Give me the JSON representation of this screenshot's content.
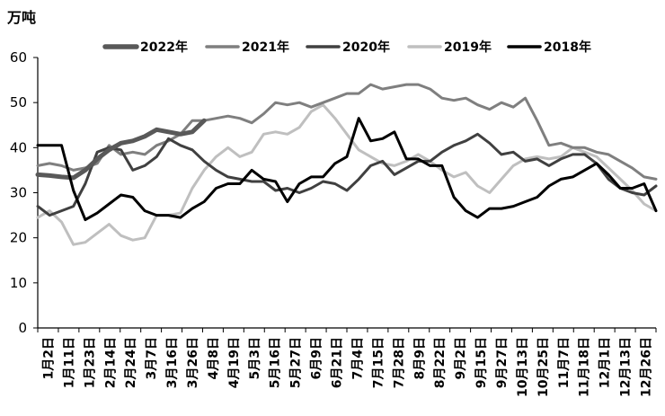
{
  "chart_data": {
    "type": "line",
    "unit_label": "万吨",
    "ylim": [
      0,
      60
    ],
    "yticks": [
      0,
      10,
      20,
      30,
      40,
      50,
      60
    ],
    "grid": false,
    "legend_position": "top",
    "x_labels": [
      "1月2日",
      "1月11日",
      "1月23日",
      "2月14日",
      "2月24日",
      "3月7日",
      "3月16日",
      "3月26日",
      "4月8日",
      "4月19日",
      "5月3日",
      "5月16日",
      "5月27日",
      "6月9日",
      "6月21日",
      "7月4日",
      "7月15日",
      "7月28日",
      "8月9日",
      "8月22日",
      "9月2日",
      "9月15日",
      "9月27日",
      "10月13日",
      "10月25日",
      "11月7日",
      "11月18日",
      "12月1日",
      "12月13日",
      "12月26日"
    ],
    "series": [
      {
        "name": "2022年",
        "color": "#595959",
        "width": 5,
        "values": [
          34,
          33.8,
          33.5,
          33.3,
          35,
          37.5,
          39.5,
          41,
          41.5,
          42.5,
          44,
          43.5,
          43,
          43.5,
          46
        ]
      },
      {
        "name": "2021年",
        "color": "#7f7f7f",
        "width": 3,
        "values": [
          36,
          36.5,
          36,
          35,
          35.5,
          36.5,
          40.5,
          38.5,
          39,
          38.5,
          40.5,
          41.5,
          43,
          46,
          46,
          46.5,
          47,
          46.5,
          45.5,
          47.5,
          50,
          49.5,
          50,
          49,
          50,
          51,
          52,
          52,
          54,
          53,
          53.5,
          54,
          54,
          53,
          51,
          50.5,
          51,
          49.5,
          48.5,
          50,
          49,
          51,
          46,
          40.5,
          41,
          40,
          40,
          39,
          38.5,
          37,
          35.5,
          33.5,
          33
        ]
      },
      {
        "name": "2020年",
        "color": "#404040",
        "width": 3,
        "values": [
          27,
          25,
          26,
          27,
          32,
          39,
          40,
          39.5,
          35,
          36,
          38,
          42,
          40.5,
          39.5,
          37,
          35,
          33.5,
          33,
          32.5,
          32.5,
          30.5,
          31,
          30,
          31,
          32.5,
          32,
          30.5,
          33,
          36,
          37,
          34,
          35.5,
          37,
          37,
          39,
          40.5,
          41.5,
          43,
          41,
          38.5,
          39,
          37,
          37.5,
          36,
          37.5,
          38.5,
          38.5,
          36.5,
          33,
          31,
          30,
          29.5,
          31.5
        ]
      },
      {
        "name": "2019年",
        "color": "#bfbfbf",
        "width": 3,
        "values": [
          24.5,
          26,
          23.5,
          18.5,
          19,
          21,
          23,
          20.5,
          19.5,
          20,
          25,
          25,
          25.5,
          31,
          35,
          38,
          40,
          38,
          39,
          43,
          43.5,
          43,
          44.5,
          48,
          49.5,
          46.5,
          43,
          39.5,
          38,
          36.5,
          36,
          37,
          38.5,
          37,
          35,
          33.5,
          34.5,
          31.5,
          30,
          33,
          36,
          37.5,
          38,
          37.5,
          38,
          40,
          39,
          38,
          35.5,
          33,
          30.5,
          27.5,
          26
        ]
      },
      {
        "name": "2018年",
        "color": "#000000",
        "width": 3,
        "values": [
          40.5,
          40.5,
          40.5,
          30.5,
          24,
          25.5,
          27.5,
          29.5,
          29,
          26,
          25,
          25,
          24.5,
          26.5,
          28,
          31,
          32,
          32,
          35,
          33,
          32.5,
          28,
          32,
          33.5,
          33.5,
          36.5,
          38,
          46.5,
          41.5,
          42,
          43.5,
          37.5,
          37.5,
          36,
          36,
          29,
          26,
          24.5,
          26.5,
          26.5,
          27,
          28,
          29,
          31.5,
          33,
          33.5,
          35,
          36.5,
          34,
          31,
          31,
          32,
          26
        ]
      }
    ]
  }
}
